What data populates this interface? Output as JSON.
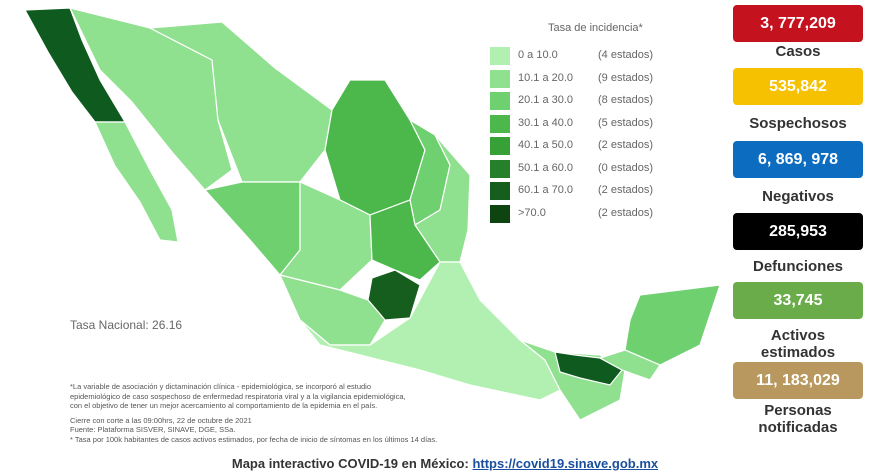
{
  "legend": {
    "title": "Tasa de incidencia*",
    "items": [
      {
        "range": "0 a 10.0",
        "count": "(4 estados)"
      },
      {
        "range": "10.1 a 20.0",
        "count": "(9 estados)"
      },
      {
        "range": "20.1 a 30.0",
        "count": "(8 estados)"
      },
      {
        "range": "30.1 a 40.0",
        "count": "(5 estados)"
      },
      {
        "range": "40.1 a 50.0",
        "count": "(2 estados)"
      },
      {
        "range": "50.1 a 60.0",
        "count": "(0 estados)"
      },
      {
        "range": "60.1 a 70.0",
        "count": "(2 estados)"
      },
      {
        "range": ">70.0",
        "count": "(2 estados)"
      }
    ]
  },
  "national_rate": "Tasa Nacional: 26.16",
  "stats": [
    {
      "value": "3, 777,209",
      "label": "Casos"
    },
    {
      "value": "535,842",
      "label": "Sospechosos"
    },
    {
      "value": "6, 869, 978",
      "label": "Negativos"
    },
    {
      "value": "285,953",
      "label": "Defunciones"
    },
    {
      "value": "33,745",
      "label": "Activos estimados"
    },
    {
      "value": "11, 183,029",
      "label": "Personas notificadas"
    }
  ],
  "footnotes": [
    "*La variable de asociación y dictaminación clínica - epidemiológica, se incorporó al estudio",
    "epidemiológico de caso sospechoso de enfermedad respiratoria viral y a la vigilancia epidemiológica,",
    "con el objetivo de tener un mejor acercamiento al comportamiento de la epidemia en el país.",
    "Cierre con corte a las 09:00hrs, 22 de octubre de 2021",
    "Fuente: Plataforma SISVER, SINAVE, DGE, SSa.",
    "* Tasa por 100k habitantes de casos activos estimados, por fecha de inicio de síntomas en los últimos 14 días."
  ],
  "footer": {
    "text": "Mapa interactivo COVID-19 en México:",
    "link": "https://covid19.sinave.gob.mx"
  }
}
